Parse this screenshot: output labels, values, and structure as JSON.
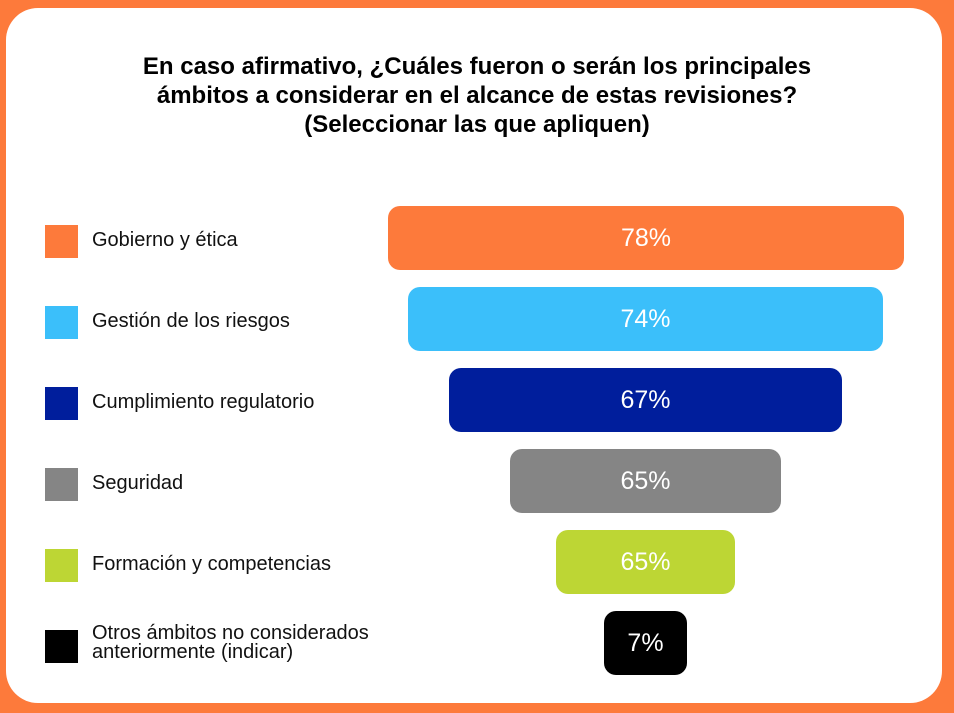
{
  "chart_data": {
    "type": "bar",
    "title_lines": [
      "En caso afirmativo, ¿Cuáles fueron o serán los principales",
      "ámbitos a considerar en el alcance de estas revisiones?",
      "(Seleccionar las que apliquen)"
    ],
    "categories": [
      "Gobierno y ética",
      "Gestión de los riesgos",
      "Cumplimiento regulatorio",
      "Seguridad",
      "Formación y competencias",
      "Otros ámbitos no considerados anteriormente (indicar)"
    ],
    "values": [
      78,
      74,
      67,
      65,
      65,
      7
    ],
    "labels": [
      "78%",
      "74%",
      "67%",
      "65%",
      "65%",
      "7%"
    ],
    "colors": [
      "#fd7a3b",
      "#3bbffa",
      "#001e9c",
      "#858585",
      "#bdd634",
      "#000000"
    ],
    "unit": "%",
    "legend": "left",
    "grid": false
  }
}
